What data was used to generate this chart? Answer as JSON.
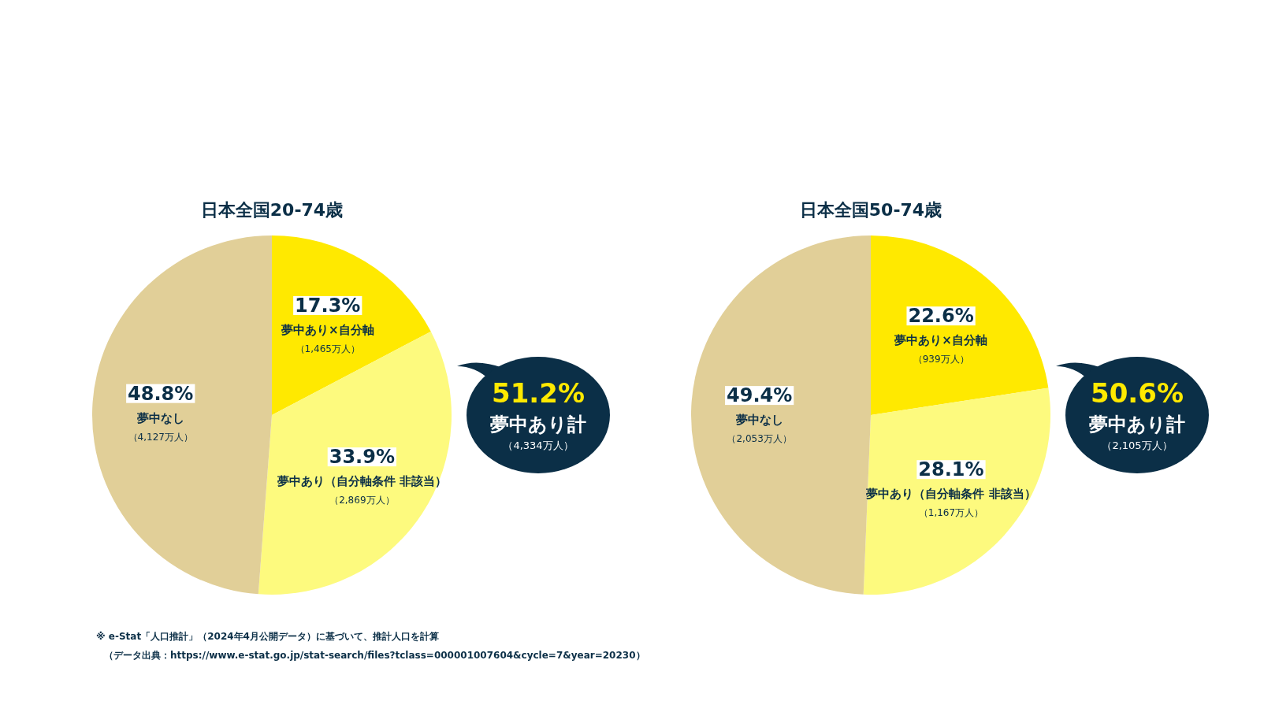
{
  "chart_data": [
    {
      "type": "pie",
      "title": "日本全国20-74歳",
      "categories": [
        "夢中あり×自分軸",
        "夢中あり（自分軸条件 非該当）",
        "夢中なし"
      ],
      "values": [
        17.3,
        33.9,
        48.8
      ],
      "colors": [
        "#ffe900",
        "#fdfa7e",
        "#e1cf98"
      ],
      "value_labels": [
        "17.3%",
        "33.9%",
        "48.8%"
      ],
      "annotations": [
        {
          "text": "（1,465万人）",
          "x": "夢中あり×自分軸"
        },
        {
          "text": "（2,869万人）",
          "x": "夢中あり（自分軸条件 非該当）"
        },
        {
          "text": "（4,127万人）",
          "x": "夢中なし"
        },
        "51.2%",
        "夢中あり計",
        "（4,334万人）",
        "※ e-Stat「人口推計」（2024年4月公開データ）に基づいて、推計人口を計算",
        "（データ出典：https://www.e-stat.go.jp/stat-search/files?tclass=000001007604&cycle=7&year=20230）"
      ]
    },
    {
      "type": "pie",
      "title": "日本全国50-74歳",
      "categories": [
        "夢中あり×自分軸",
        "夢中あり（自分軸条件 非該当）",
        "夢中なし"
      ],
      "values": [
        22.6,
        28.1,
        49.4
      ],
      "colors": [
        "#ffe900",
        "#fdfa7e",
        "#e1cf98"
      ],
      "value_labels": [
        "22.6%",
        "28.1%",
        "49.4%"
      ],
      "annotations": [
        {
          "text": "（939万人）",
          "x": "夢中あり×自分軸"
        },
        {
          "text": "（1,167万人）",
          "x": "夢中あり（自分軸条件 非該当）"
        },
        {
          "text": "（2,053万人）",
          "x": "夢中なし"
        },
        "50.6%",
        "夢中あり計",
        "（2,105万人）"
      ]
    }
  ]
}
